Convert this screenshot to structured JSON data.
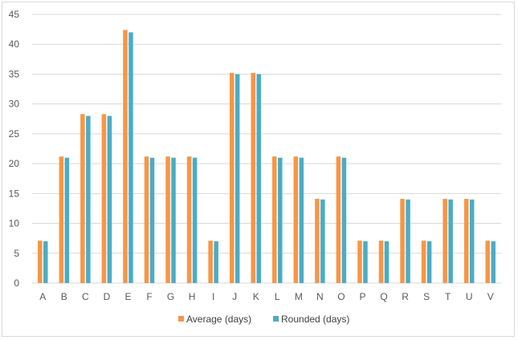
{
  "chart_data": {
    "type": "bar",
    "categories": [
      "A",
      "B",
      "C",
      "D",
      "E",
      "F",
      "G",
      "H",
      "I",
      "J",
      "K",
      "L",
      "M",
      "N",
      "O",
      "P",
      "Q",
      "R",
      "S",
      "T",
      "U",
      "V"
    ],
    "series": [
      {
        "name": "Average (days)",
        "color": "#f79646",
        "values": [
          7.1,
          21.2,
          28.3,
          28.3,
          42.4,
          21.2,
          21.2,
          21.2,
          7.1,
          35.2,
          35.2,
          21.2,
          21.2,
          14.1,
          21.2,
          7.1,
          7.1,
          14.1,
          7.1,
          14.1,
          14.1,
          7.1
        ]
      },
      {
        "name": "Rounded (days)",
        "color": "#4bacc6",
        "values": [
          7,
          21,
          28,
          28,
          42,
          21,
          21,
          21,
          7,
          35,
          35,
          21,
          21,
          14,
          21,
          7,
          7,
          14,
          7,
          14,
          14,
          7
        ]
      }
    ],
    "ylim": [
      0,
      45
    ],
    "yticks": [
      0,
      5,
      10,
      15,
      20,
      25,
      30,
      35,
      40,
      45
    ],
    "grid": true,
    "legend_position": "bottom",
    "title": "",
    "xlabel": "",
    "ylabel": ""
  }
}
